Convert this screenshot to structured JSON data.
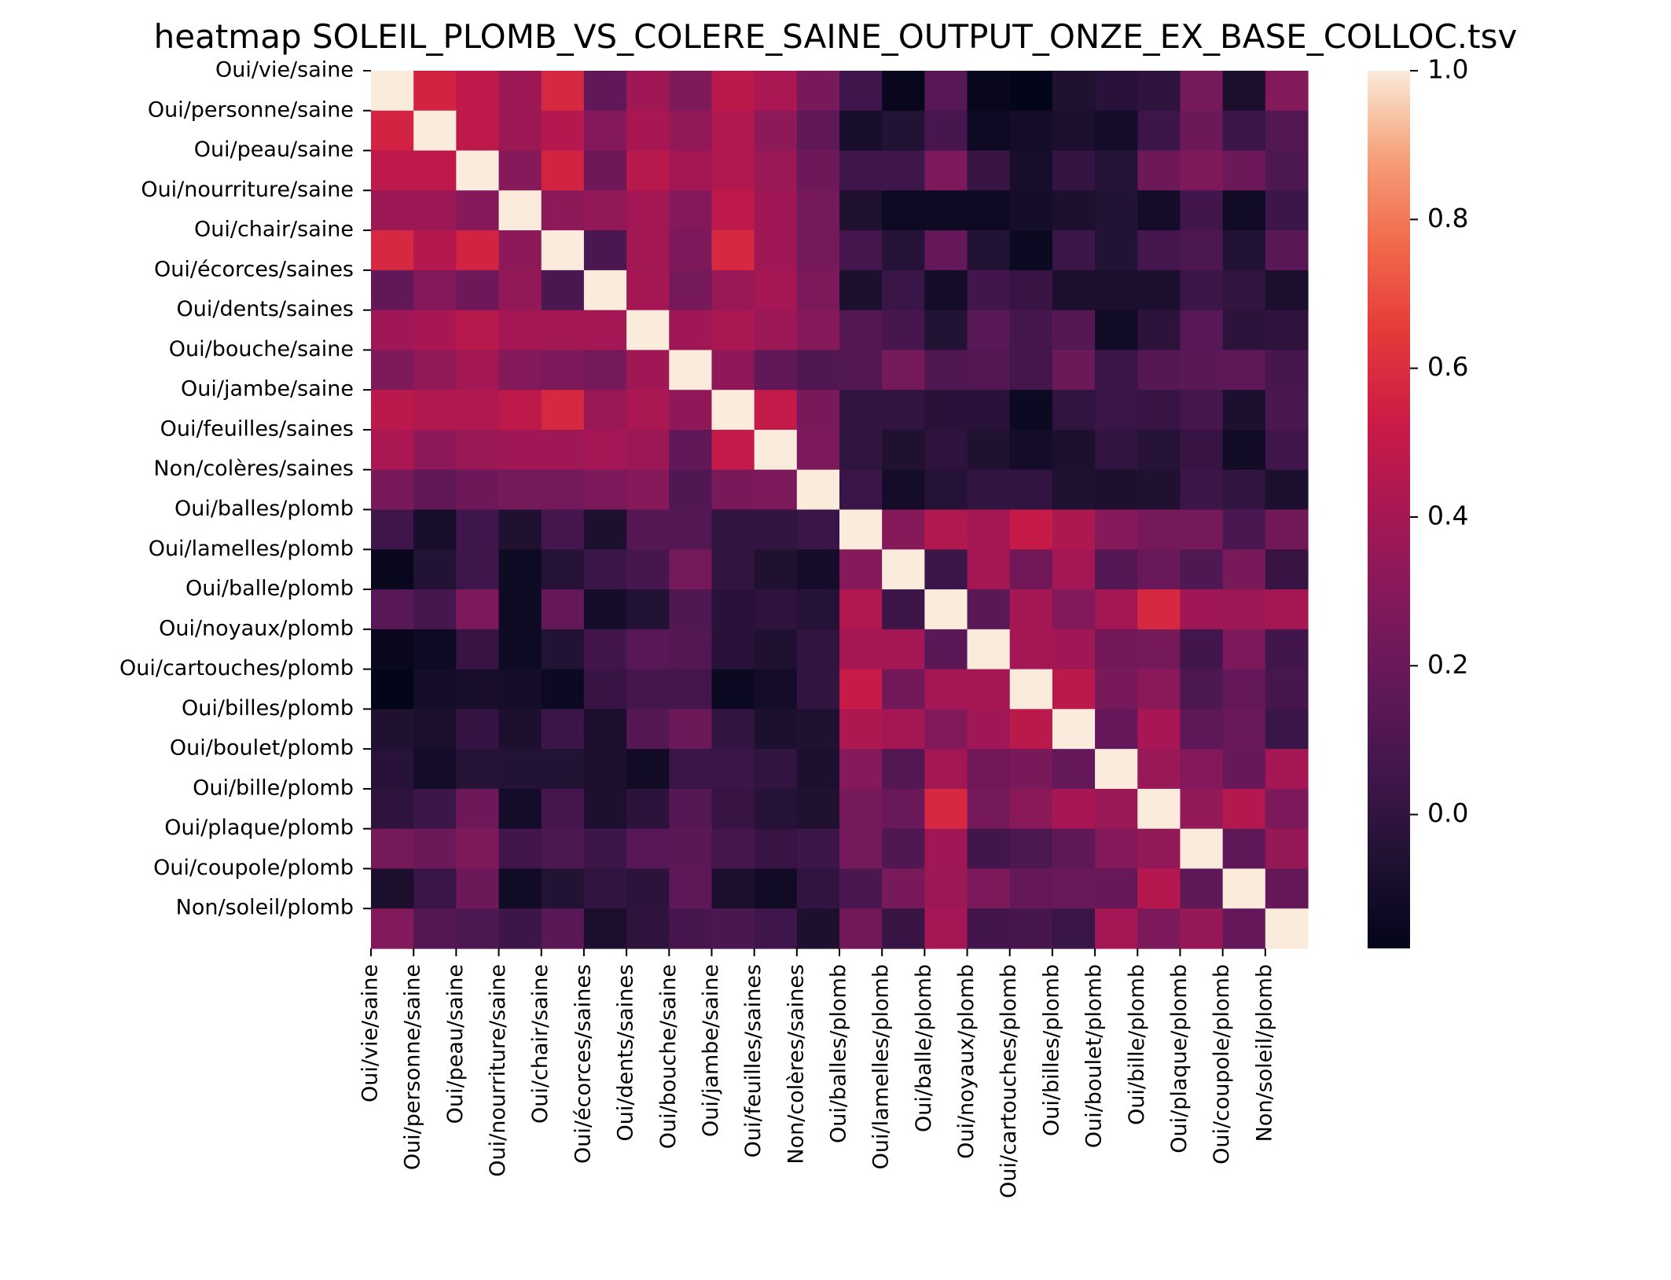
{
  "chart_data": {
    "type": "heatmap",
    "title": "heatmap SOLEIL_PLOMB_VS_COLERE_SAINE_OUTPUT_ONZE_EX_BASE_COLLOC.tsv",
    "labels": [
      "Oui/vie/saine",
      "Oui/personne/saine",
      "Oui/peau/saine",
      "Oui/nourriture/saine",
      "Oui/chair/saine",
      "Oui/écorces/saines",
      "Oui/dents/saines",
      "Oui/bouche/saine",
      "Oui/jambe/saine",
      "Oui/feuilles/saines",
      "Non/colères/saines",
      "Oui/balles/plomb",
      "Oui/lamelles/plomb",
      "Oui/balle/plomb",
      "Oui/noyaux/plomb",
      "Oui/cartouches/plomb",
      "Oui/billes/plomb",
      "Oui/boulet/plomb",
      "Oui/bille/plomb",
      "Oui/plaque/plomb",
      "Oui/coupole/plomb",
      "Non/soleil/plomb"
    ],
    "xlabels": [
      "Oui/vie/saine",
      "Oui/personne/saine",
      "Oui/peau/saine",
      "Oui/nourriture/saine",
      "Oui/chair/saine",
      "Oui/écorces/saines",
      "Oui/dents/saines",
      "Oui/bouche/saine",
      "Oui/jambe/saine",
      "Oui/feuilles/saines",
      "Non/colères/saines",
      "Oui/balles/plomb",
      "Oui/lamelles/plomb",
      "Oui/balle/plomb",
      "Oui/noyaux/plomb",
      "Oui/cartouches/plomb",
      "Oui/billes/plomb",
      "Oui/boulet/plomb",
      "Oui/bille/plomb",
      "Oui/plaque/plomb",
      "Oui/coupole/plomb",
      "Non/soleil/plomb"
    ],
    "colorbar": {
      "vmin": -0.18,
      "vmax": 1.0,
      "ticks": [
        0.0,
        0.2,
        0.4,
        0.6,
        0.8,
        1.0
      ],
      "tick_labels": [
        "0.0",
        "0.2",
        "0.4",
        "0.6",
        "0.8",
        "1.0"
      ]
    },
    "colormap": "rocket",
    "values": [
      [
        1.0,
        0.56,
        0.48,
        0.37,
        0.58,
        0.17,
        0.38,
        0.27,
        0.47,
        0.42,
        0.25,
        0.05,
        -0.16,
        0.14,
        -0.16,
        -0.18,
        -0.06,
        -0.03,
        -0.01,
        0.24,
        -0.08,
        0.28
      ],
      [
        0.56,
        1.0,
        0.48,
        0.37,
        0.45,
        0.29,
        0.41,
        0.34,
        0.44,
        0.32,
        0.17,
        -0.09,
        -0.05,
        0.08,
        -0.13,
        -0.11,
        -0.08,
        -0.11,
        0.04,
        0.21,
        0.03,
        0.12
      ],
      [
        0.48,
        0.48,
        1.0,
        0.3,
        0.56,
        0.22,
        0.46,
        0.39,
        0.44,
        0.36,
        0.22,
        0.05,
        0.05,
        0.26,
        0.02,
        -0.09,
        0.01,
        -0.04,
        0.22,
        0.27,
        0.21,
        0.1
      ],
      [
        0.37,
        0.37,
        0.3,
        1.0,
        0.32,
        0.34,
        0.39,
        0.29,
        0.48,
        0.38,
        0.24,
        -0.06,
        -0.13,
        -0.13,
        -0.13,
        -0.1,
        -0.07,
        -0.05,
        -0.11,
        0.06,
        -0.12,
        0.04
      ],
      [
        0.58,
        0.45,
        0.56,
        0.32,
        1.0,
        0.09,
        0.39,
        0.26,
        0.58,
        0.38,
        0.24,
        0.07,
        -0.04,
        0.18,
        -0.05,
        -0.14,
        0.04,
        -0.05,
        0.07,
        0.1,
        -0.05,
        0.15
      ],
      [
        0.17,
        0.29,
        0.22,
        0.34,
        0.09,
        1.0,
        0.4,
        0.24,
        0.36,
        0.4,
        0.26,
        -0.07,
        0.03,
        -0.11,
        0.06,
        0.02,
        -0.08,
        -0.08,
        -0.07,
        0.04,
        0.0,
        -0.08
      ],
      [
        0.38,
        0.41,
        0.46,
        0.39,
        0.39,
        0.4,
        1.0,
        0.38,
        0.42,
        0.37,
        0.3,
        0.13,
        0.08,
        -0.05,
        0.14,
        0.07,
        0.13,
        -0.12,
        -0.02,
        0.14,
        -0.02,
        -0.01
      ],
      [
        0.27,
        0.34,
        0.39,
        0.29,
        0.26,
        0.24,
        0.38,
        1.0,
        0.33,
        0.17,
        0.11,
        0.12,
        0.24,
        0.11,
        0.12,
        0.07,
        0.21,
        0.03,
        0.13,
        0.15,
        0.16,
        0.08
      ],
      [
        0.47,
        0.44,
        0.44,
        0.48,
        0.58,
        0.36,
        0.42,
        0.33,
        1.0,
        0.5,
        0.25,
        0.0,
        0.0,
        -0.03,
        -0.03,
        -0.14,
        0.0,
        0.03,
        0.02,
        0.07,
        -0.07,
        0.09
      ],
      [
        0.42,
        0.32,
        0.36,
        0.38,
        0.38,
        0.4,
        0.37,
        0.17,
        0.5,
        1.0,
        0.26,
        0.0,
        -0.06,
        -0.01,
        -0.06,
        -0.11,
        -0.07,
        0.0,
        -0.04,
        0.02,
        -0.12,
        0.05
      ],
      [
        0.25,
        0.17,
        0.22,
        0.24,
        0.24,
        0.26,
        0.3,
        0.11,
        0.25,
        0.26,
        1.0,
        0.03,
        -0.11,
        -0.04,
        0.0,
        0.0,
        -0.06,
        -0.07,
        -0.06,
        0.04,
        0.0,
        -0.07
      ],
      [
        0.05,
        -0.09,
        0.05,
        -0.06,
        0.07,
        -0.07,
        0.13,
        0.12,
        0.0,
        0.0,
        0.03,
        1.0,
        0.3,
        0.44,
        0.4,
        0.51,
        0.43,
        0.3,
        0.24,
        0.24,
        0.09,
        0.23
      ],
      [
        -0.16,
        -0.05,
        0.05,
        -0.13,
        -0.04,
        0.03,
        0.08,
        0.24,
        0.0,
        -0.06,
        -0.11,
        0.3,
        1.0,
        0.04,
        0.4,
        0.23,
        0.4,
        0.12,
        0.2,
        0.11,
        0.25,
        0.02
      ],
      [
        0.14,
        0.08,
        0.26,
        -0.13,
        0.18,
        -0.11,
        -0.05,
        0.11,
        -0.03,
        -0.01,
        -0.04,
        0.44,
        0.04,
        1.0,
        0.15,
        0.4,
        0.28,
        0.39,
        0.58,
        0.38,
        0.37,
        0.4
      ],
      [
        -0.16,
        -0.13,
        0.02,
        -0.13,
        -0.05,
        0.06,
        0.14,
        0.12,
        -0.03,
        -0.06,
        0.0,
        0.4,
        0.4,
        0.15,
        1.0,
        0.4,
        0.38,
        0.23,
        0.24,
        0.06,
        0.26,
        0.06
      ],
      [
        -0.18,
        -0.11,
        -0.09,
        -0.1,
        -0.14,
        0.02,
        0.07,
        0.07,
        -0.14,
        -0.11,
        0.0,
        0.51,
        0.23,
        0.4,
        0.4,
        1.0,
        0.47,
        0.25,
        0.31,
        0.1,
        0.18,
        0.08
      ],
      [
        -0.06,
        -0.08,
        0.01,
        -0.07,
        0.04,
        -0.08,
        0.13,
        0.21,
        0.0,
        -0.07,
        -0.06,
        0.43,
        0.4,
        0.28,
        0.38,
        0.47,
        1.0,
        0.18,
        0.41,
        0.16,
        0.2,
        0.03
      ],
      [
        -0.03,
        -0.11,
        -0.04,
        -0.05,
        -0.05,
        -0.08,
        -0.12,
        0.03,
        0.03,
        0.0,
        -0.07,
        0.3,
        0.12,
        0.39,
        0.23,
        0.25,
        0.18,
        1.0,
        0.36,
        0.29,
        0.19,
        0.4
      ],
      [
        -0.01,
        0.04,
        0.22,
        -0.11,
        0.07,
        -0.07,
        -0.02,
        0.13,
        0.02,
        -0.04,
        -0.06,
        0.24,
        0.2,
        0.58,
        0.24,
        0.31,
        0.41,
        0.36,
        1.0,
        0.34,
        0.45,
        0.26
      ],
      [
        0.24,
        0.21,
        0.27,
        0.06,
        0.1,
        0.04,
        0.14,
        0.15,
        0.07,
        0.02,
        0.04,
        0.24,
        0.11,
        0.38,
        0.06,
        0.1,
        0.16,
        0.29,
        0.34,
        1.0,
        0.16,
        0.35
      ],
      [
        -0.08,
        0.03,
        0.21,
        -0.12,
        -0.05,
        0.0,
        -0.02,
        0.16,
        -0.07,
        -0.12,
        0.0,
        0.09,
        0.25,
        0.37,
        0.26,
        0.18,
        0.2,
        0.19,
        0.45,
        0.16,
        1.0,
        0.18
      ],
      [
        0.28,
        0.12,
        0.1,
        0.04,
        0.15,
        -0.08,
        -0.01,
        0.08,
        0.09,
        0.05,
        -0.07,
        0.23,
        0.02,
        0.4,
        0.06,
        0.08,
        0.03,
        0.4,
        0.26,
        0.35,
        0.18,
        1.0
      ]
    ]
  }
}
